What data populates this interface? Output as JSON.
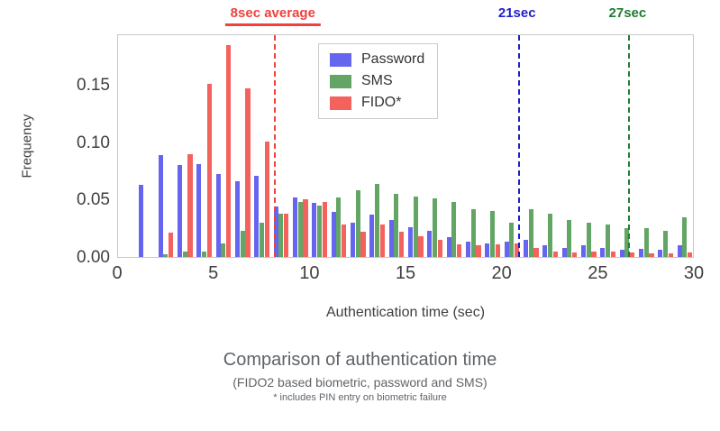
{
  "chart_data": {
    "type": "bar",
    "title": "Comparison of authentication time",
    "subtitle": "(FIDO2 based biometric, password and SMS)",
    "footnote": "* includes PIN entry on biometric failure",
    "xlabel": "Authentication time (sec)",
    "ylabel": "Frequency",
    "xlim": [
      0,
      30
    ],
    "ylim": [
      0,
      0.195
    ],
    "grid": false,
    "legend_position": "top-center-inside",
    "xticks": {
      "values": [
        0,
        5,
        10,
        15,
        20,
        25,
        30
      ],
      "labels": [
        "0",
        "5",
        "10",
        "15",
        "20",
        "25",
        "30"
      ]
    },
    "yticks": {
      "values": [
        0,
        0.05,
        0.1,
        0.15
      ],
      "labels": [
        "0.00",
        "0.05",
        "0.10",
        "0.15"
      ]
    },
    "categories": [
      1,
      2,
      3,
      4,
      5,
      6,
      7,
      8,
      9,
      10,
      11,
      12,
      13,
      14,
      15,
      16,
      17,
      18,
      19,
      20,
      21,
      22,
      23,
      24,
      25,
      26,
      27,
      28,
      29
    ],
    "series": [
      {
        "name": "Password",
        "color": "#6565ef",
        "values": [
          0.063,
          0.089,
          0.08,
          0.081,
          0.072,
          0.066,
          0.071,
          0.044,
          0.052,
          0.047,
          0.039,
          0.03,
          0.037,
          0.032,
          0.026,
          0.023,
          0.017,
          0.013,
          0.012,
          0.013,
          0.015,
          0.01,
          0.008,
          0.01,
          0.008,
          0.006,
          0.007,
          0.006,
          0.01
        ]
      },
      {
        "name": "SMS",
        "color": "#62a565",
        "values": [
          0.0,
          0.002,
          0.005,
          0.005,
          0.012,
          0.023,
          0.03,
          0.038,
          0.048,
          0.045,
          0.052,
          0.058,
          0.064,
          0.055,
          0.053,
          0.051,
          0.048,
          0.042,
          0.04,
          0.03,
          0.042,
          0.038,
          0.032,
          0.03,
          0.028,
          0.025,
          0.025,
          0.023,
          0.035
        ]
      },
      {
        "name": "FIDO*",
        "color": "#f4625e",
        "values": [
          0.0,
          0.021,
          0.09,
          0.151,
          0.185,
          0.147,
          0.101,
          0.038,
          0.05,
          0.048,
          0.028,
          0.022,
          0.028,
          0.022,
          0.018,
          0.015,
          0.011,
          0.01,
          0.011,
          0.012,
          0.008,
          0.005,
          0.004,
          0.005,
          0.005,
          0.004,
          0.003,
          0.003,
          0.004
        ]
      }
    ],
    "vlines": [
      {
        "label": "8sec average",
        "x": 8.1,
        "color": "#f0413c",
        "underline": true
      },
      {
        "label": "21sec",
        "x": 20.8,
        "color": "#2020c8",
        "underline": false
      },
      {
        "label": "27sec",
        "x": 26.55,
        "color": "#1e7d32",
        "underline": false
      }
    ]
  }
}
